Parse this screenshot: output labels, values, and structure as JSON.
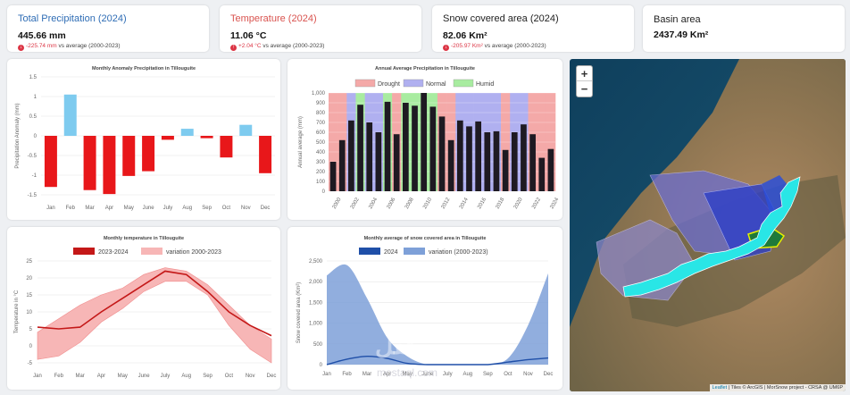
{
  "stats": [
    {
      "title": "Total Precipitation (2024)",
      "title_color": "#2f6db5",
      "value": "445.66 mm",
      "delta": "-225.74 mm",
      "suffix": "vs average (2000-2023)"
    },
    {
      "title": "Temperature (2024)",
      "title_color": "#d9534f",
      "value": "11.06 °C",
      "delta": "+2.04 °C",
      "suffix": "vs average (2000-2023)"
    },
    {
      "title": "Snow covered area (2024)",
      "title_color": "#222222",
      "value": "82.06 Km²",
      "delta": "-205.97 Km²",
      "suffix": "vs average (2000-2023)"
    },
    {
      "title": "Basin area",
      "title_color": "#222222",
      "value": "2437.49 Km²"
    }
  ],
  "map": {
    "zoom_in": "+",
    "zoom_out": "−",
    "attribution_link": "Leaflet",
    "attribution_text": " | Tiles © ArcGIS | MorSnow project - CRSA @ UM6P"
  },
  "watermark": {
    "ar": "مستقل",
    "latin": "mostaql.com"
  },
  "chart_data": [
    {
      "type": "bar",
      "title": "Monthly Anomaly Precipitation in Tillouguite",
      "ylabel": "Precipitation Anomaly (mm)",
      "categories": [
        "Jan",
        "Feb",
        "Mar",
        "Apr",
        "May",
        "June",
        "July",
        "Aug",
        "Sep",
        "Oct",
        "Nov",
        "Dec"
      ],
      "values": [
        -1.3,
        1.05,
        -1.38,
        -1.48,
        -1.02,
        -0.9,
        -0.1,
        0.18,
        -0.06,
        -0.55,
        0.28,
        -0.95
      ],
      "ylim": [
        -1.5,
        1.5
      ],
      "yticks": [
        "1.5",
        "1",
        "0.5",
        "0",
        "-0.5",
        "-1",
        "-1.5"
      ],
      "colors": {
        "positive": "#7ecbef",
        "negative": "#e8171a"
      }
    },
    {
      "type": "bar",
      "title": "Annual Average Precipitation in Tillouguite",
      "ylabel": "Annual average (mm)",
      "legend": [
        {
          "name": "Drought",
          "color": "#f4a9a8"
        },
        {
          "name": "Normal",
          "color": "#b0b0f0"
        },
        {
          "name": "Humid",
          "color": "#a8eca0"
        }
      ],
      "years": [
        2000,
        2001,
        2002,
        2003,
        2004,
        2005,
        2006,
        2007,
        2008,
        2009,
        2010,
        2011,
        2012,
        2013,
        2014,
        2015,
        2016,
        2017,
        2018,
        2019,
        2020,
        2021,
        2022,
        2023,
        2024
      ],
      "values": [
        300,
        520,
        720,
        880,
        700,
        600,
        910,
        580,
        900,
        870,
        1000,
        860,
        760,
        520,
        720,
        660,
        710,
        600,
        610,
        420,
        600,
        680,
        580,
        340,
        430
      ],
      "classes": [
        "D",
        "D",
        "N",
        "H",
        "N",
        "N",
        "H",
        "D",
        "H",
        "H",
        "H",
        "H",
        "D",
        "D",
        "N",
        "N",
        "N",
        "N",
        "N",
        "D",
        "N",
        "N",
        "D",
        "D",
        "D"
      ],
      "xticks": [
        "2000",
        "2002",
        "2004",
        "2006",
        "2008",
        "2010",
        "2012",
        "2014",
        "2016",
        "2018",
        "2020",
        "2022",
        "2024"
      ],
      "yticks": [
        "1,000",
        "900",
        "800",
        "700",
        "600",
        "500",
        "400",
        "300",
        "200",
        "100",
        "0"
      ],
      "ylim": [
        0,
        1000
      ]
    },
    {
      "type": "line",
      "title": "Monthly temperature in Tillouguite",
      "ylabel": "Temperature in °C",
      "categories": [
        "Jan",
        "Feb",
        "Mar",
        "Apr",
        "May",
        "June",
        "July",
        "Aug",
        "Sep",
        "Oct",
        "Nov",
        "Dec"
      ],
      "series": [
        {
          "name": "2023-2024",
          "color": "#c41818",
          "values": [
            5.5,
            5,
            5.5,
            10,
            14,
            18,
            22,
            21,
            16,
            10,
            6,
            3
          ]
        },
        {
          "name": "variation 2000-2023",
          "color": "#f7b6b6",
          "upper": [
            4,
            8,
            12,
            15,
            17,
            21,
            23,
            22,
            18,
            12,
            6,
            2
          ],
          "lower": [
            -4,
            -3,
            1,
            7,
            11,
            16,
            19,
            19,
            15,
            6,
            -1,
            -5
          ]
        }
      ],
      "ylim": [
        -5,
        25
      ],
      "yticks": [
        "25",
        "20",
        "15",
        "10",
        "5",
        "0",
        "-5"
      ]
    },
    {
      "type": "area",
      "title": "Monthly average of snow covered area in Tillouguite",
      "ylabel": "Snow covered area (Km²)",
      "categories": [
        "Jan",
        "Feb",
        "Mar",
        "Apr",
        "May",
        "June",
        "July",
        "Aug",
        "Sep",
        "Oct",
        "Nov",
        "Dec"
      ],
      "series": [
        {
          "name": "2024",
          "color": "#1f4fa8",
          "values": [
            0,
            130,
            200,
            150,
            30,
            0,
            0,
            0,
            0,
            60,
            120,
            160
          ]
        },
        {
          "name": "variation (2000-2023)",
          "color": "#7ea0d8",
          "values": [
            2150,
            2400,
            1600,
            650,
            200,
            0,
            0,
            0,
            0,
            150,
            950,
            2200
          ]
        }
      ],
      "ylim": [
        0,
        2500
      ],
      "yticks": [
        "2,500",
        "2,000",
        "1,500",
        "1,000",
        "500",
        "0"
      ]
    }
  ]
}
